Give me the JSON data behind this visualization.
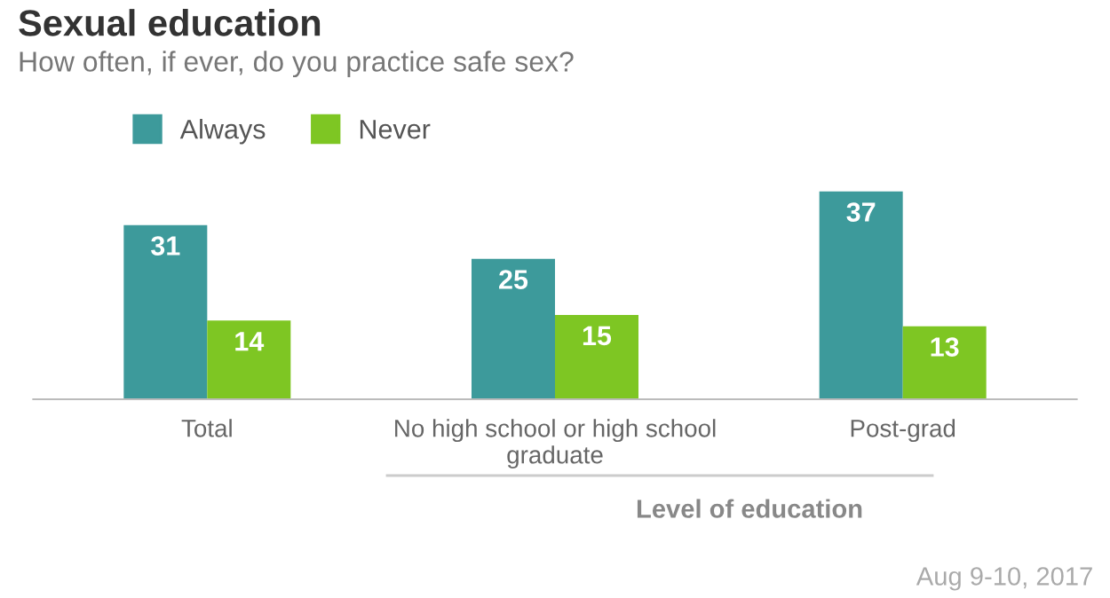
{
  "chart_data": {
    "type": "bar",
    "title": "Sexual education",
    "subtitle": "How often, if ever, do you practice safe sex?",
    "categories": [
      "Total",
      "No high school or high school\ngraduate",
      "Post-grad"
    ],
    "series": [
      {
        "name": "Always",
        "color": "#3d9a9b",
        "values": [
          31,
          25,
          37
        ]
      },
      {
        "name": "Never",
        "color": "#7ec623",
        "values": [
          14,
          15,
          13
        ]
      }
    ],
    "data_labels": true,
    "legend": "top left",
    "grid": false,
    "annotations": [
      "Level of education",
      "Aug 9-10, 2017"
    ]
  }
}
